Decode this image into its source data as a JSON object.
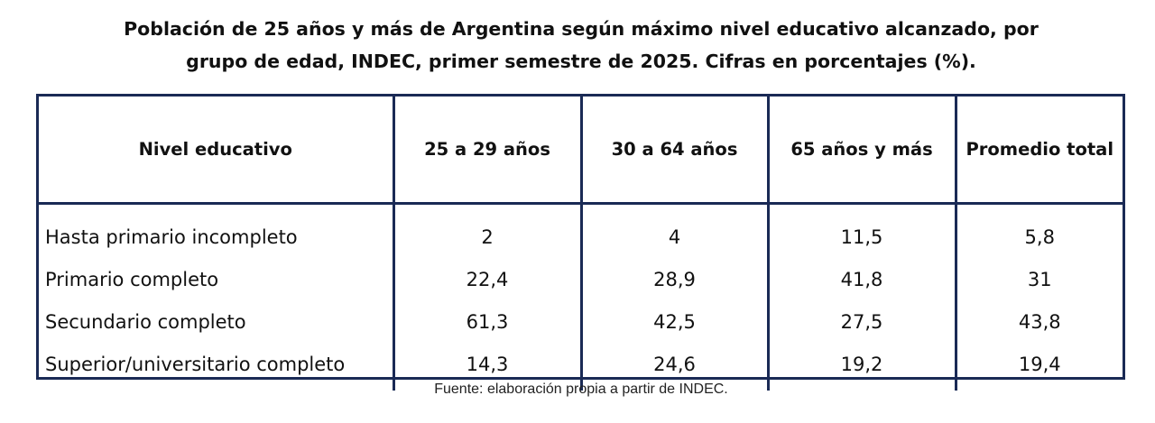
{
  "title": {
    "line1": "Población de 25 años y más de Argentina según máximo nivel educativo alcanzado, por",
    "line2": "grupo de edad, INDEC, primer semestre de 2025. Cifras en porcentajes (%)."
  },
  "table": {
    "headers": [
      "Nivel educativo",
      "25 a 29 años",
      "30 a 64 años",
      "65 años y más",
      "Promedio total"
    ],
    "rows": [
      [
        "Hasta primario incompleto",
        "2",
        "4",
        "11,5",
        "5,8"
      ],
      [
        "Primario completo",
        "22,4",
        "28,9",
        "41,8",
        "31"
      ],
      [
        "Secundario completo",
        "61,3",
        "42,5",
        "27,5",
        "43,8"
      ],
      [
        "Superior/universitario completo",
        "14,3",
        "24,6",
        "19,2",
        "19,4"
      ]
    ]
  },
  "source": "Fuente: elaboración propia a partir de INDEC.",
  "colors": {
    "border": "#1a2a55",
    "text": "#111111"
  }
}
